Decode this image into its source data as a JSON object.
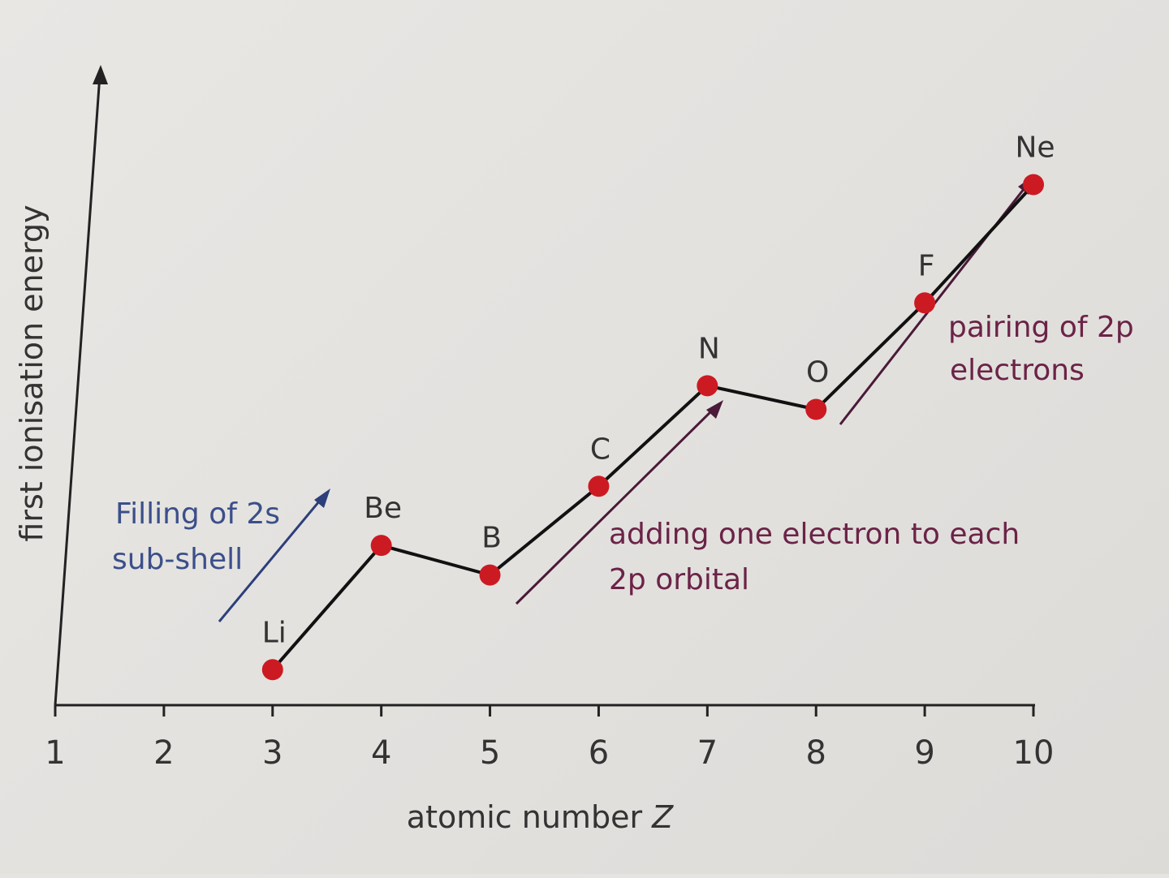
{
  "chart_data": {
    "type": "line",
    "xlabel": "atomic number",
    "xlabel_italic": "Z",
    "ylabel": "first ionisation energy",
    "x_ticks": [
      "1",
      "2",
      "3",
      "4",
      "5",
      "6",
      "7",
      "8",
      "9",
      "10"
    ],
    "xlim": [
      1,
      10
    ],
    "ylim": [
      0,
      1
    ],
    "y_ticks": "none",
    "grid": false,
    "series": [
      {
        "points": [
          {
            "label": "Li",
            "x": 3,
            "y": 0.06
          },
          {
            "label": "Be",
            "x": 4,
            "y": 0.27
          },
          {
            "label": "B",
            "x": 5,
            "y": 0.22
          },
          {
            "label": "C",
            "x": 6,
            "y": 0.37
          },
          {
            "label": "N",
            "x": 7,
            "y": 0.54
          },
          {
            "label": "O",
            "x": 8,
            "y": 0.5
          },
          {
            "label": "F",
            "x": 9,
            "y": 0.68
          },
          {
            "label": "Ne",
            "x": 10,
            "y": 0.88
          }
        ]
      }
    ],
    "annotations": [
      {
        "lines": [
          "Filling of 2s",
          "sub-shell"
        ],
        "color": "#3b4f8a"
      },
      {
        "lines": [
          "adding one electron to each",
          "2p orbital"
        ],
        "color": "#6b2347"
      },
      {
        "lines": [
          "pairing of 2p",
          "electrons"
        ],
        "color": "#6b2347"
      }
    ],
    "colors": {
      "marker": "#cc1a22",
      "line": "#111111",
      "axis": "#222222",
      "arrow_blue": "#2c3f7a",
      "arrow_purple": "#4a1a38"
    }
  }
}
